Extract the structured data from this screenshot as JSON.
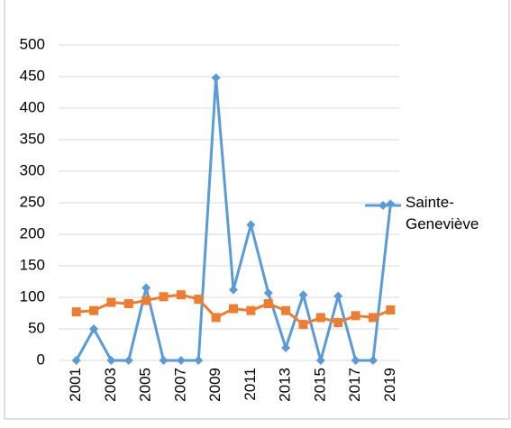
{
  "chart_data": {
    "type": "line",
    "categories": [
      "2001",
      null,
      "2003",
      null,
      "2005",
      null,
      "2007",
      null,
      "2009",
      null,
      "2011",
      null,
      "2013",
      null,
      "2015",
      null,
      "2017",
      null,
      "2019"
    ],
    "series": [
      {
        "name": "Sainte-Geneviève",
        "color": "#5b9bd5",
        "marker": "diamond",
        "values": [
          0,
          50,
          0,
          0,
          115,
          0,
          0,
          0,
          448,
          112,
          215,
          107,
          20,
          104,
          0,
          102,
          0,
          0,
          248
        ]
      },
      {
        "color": "#ed7d31",
        "marker": "square",
        "values": [
          77,
          79,
          92,
          90,
          95,
          101,
          104,
          97,
          68,
          82,
          79,
          90,
          79,
          57,
          68,
          60,
          71,
          68,
          80
        ]
      }
    ],
    "ylim": [
      0,
      500
    ],
    "yticks": [
      0,
      50,
      100,
      150,
      200,
      250,
      300,
      350,
      400,
      450,
      500
    ],
    "grid": true
  }
}
